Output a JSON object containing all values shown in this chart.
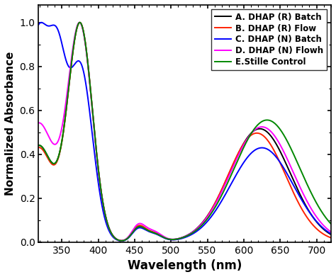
{
  "title": "",
  "xlabel": "Wavelength (nm)",
  "ylabel": "Normalized Absorbance",
  "xlim": [
    318,
    720
  ],
  "ylim": [
    0.0,
    1.08
  ],
  "xticks": [
    350,
    400,
    450,
    500,
    550,
    600,
    650,
    700
  ],
  "yticks": [
    0.0,
    0.2,
    0.4,
    0.6,
    0.8,
    1.0
  ],
  "legend": [
    {
      "label": "A. DHAP (R) Batch",
      "color": "#000000"
    },
    {
      "label": "B. DHAP (R) Flow",
      "color": "#ff2200"
    },
    {
      "label": "C. DHAP (N) Batch",
      "color": "#0000ff"
    },
    {
      "label": "D. DHAP (N) Flowh",
      "color": "#ff00ff"
    },
    {
      "label": "E.Stille Control",
      "color": "#008800"
    }
  ],
  "linewidth": 1.4,
  "background_color": "#ffffff"
}
